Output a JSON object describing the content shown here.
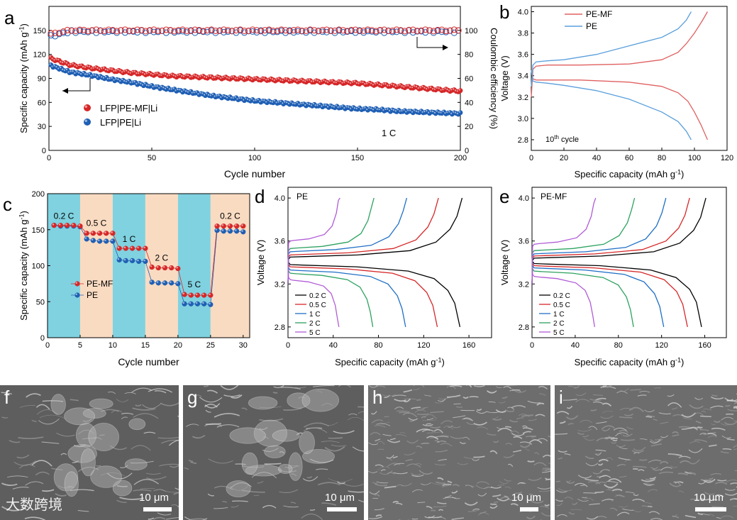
{
  "colors": {
    "red": "#d62728",
    "blue": "#1f5fb4",
    "red_line": "#e06060",
    "blue_line": "#5a9fdc",
    "cyan_band": "#55c3d6",
    "peach_band": "#f7cfae"
  },
  "panel_a": {
    "letter": "a",
    "xlabel": "Cycle number",
    "ylabel_left": "Specific capacity (mAh g",
    "ylabel_left_sup": "-1",
    "ylabel_left_end": ")",
    "ylabel_right": "Coulombic efficiency (%)",
    "rate_label": "1 C",
    "legend": [
      "LFP|PE-MF|Li",
      "LFP|PE|Li"
    ],
    "x_ticks": [
      "0",
      "50",
      "100",
      "150",
      "200"
    ],
    "y_left_ticks": [
      "0",
      "30",
      "60",
      "90",
      "120",
      "150"
    ],
    "y_right_ticks": [
      "0",
      "20",
      "40",
      "60",
      "80",
      "100"
    ]
  },
  "panel_b": {
    "letter": "b",
    "xlabel": "Specific capacity (mAh g",
    "xlabel_sup": "-1",
    "xlabel_end": ")",
    "ylabel": "Voltage (V)",
    "legend": [
      "PE-MF",
      "PE"
    ],
    "cycle_label_pre": "10",
    "cycle_label_sup": "th",
    "cycle_label_post": " cycle",
    "x_ticks": [
      "0",
      "20",
      "40",
      "60",
      "80",
      "100",
      "120"
    ],
    "y_ticks": [
      "2.8",
      "3.0",
      "3.2",
      "3.4",
      "3.6",
      "3.8",
      "4.0"
    ]
  },
  "panel_c": {
    "letter": "c",
    "xlabel": "Cycle number",
    "ylabel": "Specific capacity (mAh g",
    "ylabel_sup": "-1",
    "ylabel_end": ")",
    "legend": [
      "PE-MF",
      "PE"
    ],
    "rate_labels": [
      "0.2 C",
      "0.5 C",
      "1 C",
      "2 C",
      "5 C",
      "0.2 C"
    ],
    "x_ticks": [
      "0",
      "5",
      "10",
      "15",
      "20",
      "25",
      "30"
    ],
    "y_ticks": [
      "0",
      "50",
      "100",
      "150",
      "200"
    ]
  },
  "panel_d": {
    "letter": "d",
    "title": "PE",
    "xlabel": "Specific capacity (mAh g",
    "xlabel_sup": "-1",
    "xlabel_end": ")",
    "ylabel": "Voltage (V)",
    "legend": [
      "0.2 C",
      "0.5 C",
      "1 C",
      "2 C",
      "5 C"
    ],
    "x_ticks": [
      "0",
      "40",
      "80",
      "120",
      "160"
    ],
    "y_ticks": [
      "2.8",
      "3.2",
      "3.6",
      "4.0"
    ]
  },
  "panel_e": {
    "letter": "e",
    "title": "PE-MF",
    "xlabel": "Specific capacity (mAh g",
    "xlabel_sup": "-1",
    "xlabel_end": ")",
    "ylabel": "Voltage (V)",
    "legend": [
      "0.2 C",
      "0.5 C",
      "1 C",
      "2 C",
      "5 C"
    ],
    "x_ticks": [
      "0",
      "40",
      "80",
      "120",
      "160"
    ],
    "y_ticks": [
      "2.8",
      "3.2",
      "3.6",
      "4.0"
    ]
  },
  "sem": [
    {
      "letter": "f",
      "scale": "10 μm"
    },
    {
      "letter": "g",
      "scale": "10 μm"
    },
    {
      "letter": "h",
      "scale": "10 μm"
    },
    {
      "letter": "i",
      "scale": "10 μm"
    }
  ],
  "watermark": "大数跨境",
  "chart_data": [
    {
      "type": "scatter",
      "panel": "a",
      "title": "",
      "xlabel": "Cycle number",
      "ylabel": "Specific capacity (mAh g-1)",
      "y2label": "Coulombic efficiency (%)",
      "xlim": [
        0,
        200
      ],
      "ylim": [
        0,
        180
      ],
      "y2lim": [
        0,
        120
      ],
      "x": [
        1,
        10,
        20,
        30,
        40,
        50,
        60,
        70,
        80,
        90,
        100,
        110,
        120,
        130,
        140,
        150,
        160,
        170,
        180,
        190,
        200
      ],
      "series": [
        {
          "name": "LFP|PE-MF|Li",
          "axis": "left",
          "values": [
            115,
            107,
            103,
            100,
            97,
            95,
            93,
            92,
            91,
            90,
            89,
            88,
            87,
            86,
            85,
            84,
            82,
            80,
            78,
            76,
            74
          ]
        },
        {
          "name": "LFP|PE|Li",
          "axis": "left",
          "values": [
            106,
            98,
            94,
            89,
            85,
            80,
            76,
            72,
            68,
            65,
            62,
            60,
            58,
            56,
            54,
            52,
            51,
            49,
            48,
            47,
            46
          ]
        },
        {
          "name": "CE PE-MF",
          "axis": "right",
          "values": [
            97,
            100,
            100,
            100,
            100,
            100,
            100,
            100,
            100,
            100,
            100,
            100,
            100,
            100,
            100,
            100,
            100,
            100,
            100,
            100,
            100
          ]
        },
        {
          "name": "CE PE",
          "axis": "right",
          "values": [
            95,
            99,
            99,
            99,
            99,
            99,
            99,
            99,
            99,
            99,
            99,
            99,
            99,
            99,
            99,
            99,
            99,
            99,
            99,
            99,
            99
          ]
        }
      ]
    },
    {
      "type": "line",
      "panel": "b",
      "title": "",
      "xlabel": "Specific capacity (mAh g-1)",
      "ylabel": "Voltage (V)",
      "xlim": [
        0,
        120
      ],
      "ylim": [
        2.7,
        4.05
      ],
      "series": [
        {
          "name": "PE-MF charge",
          "x": [
            0,
            1,
            3,
            10,
            30,
            60,
            80,
            90,
            95,
            100,
            105,
            108
          ],
          "y": [
            3.2,
            3.46,
            3.49,
            3.5,
            3.5,
            3.51,
            3.55,
            3.62,
            3.7,
            3.8,
            3.92,
            4.0
          ]
        },
        {
          "name": "PE-MF discharge",
          "x": [
            0,
            1,
            3,
            10,
            30,
            60,
            80,
            90,
            96,
            100,
            104,
            108
          ],
          "y": [
            3.45,
            3.37,
            3.36,
            3.36,
            3.36,
            3.34,
            3.3,
            3.24,
            3.16,
            3.06,
            2.94,
            2.8
          ]
        },
        {
          "name": "PE charge",
          "x": [
            0,
            1,
            3,
            10,
            20,
            40,
            60,
            80,
            90,
            95,
            98
          ],
          "y": [
            3.3,
            3.5,
            3.53,
            3.54,
            3.55,
            3.6,
            3.68,
            3.76,
            3.84,
            3.92,
            4.0
          ]
        },
        {
          "name": "PE discharge",
          "x": [
            0,
            1,
            3,
            10,
            20,
            40,
            60,
            80,
            90,
            95,
            98
          ],
          "y": [
            3.45,
            3.35,
            3.34,
            3.33,
            3.31,
            3.26,
            3.18,
            3.06,
            2.97,
            2.88,
            2.8
          ]
        }
      ]
    },
    {
      "type": "line",
      "panel": "c",
      "title": "",
      "xlabel": "Cycle number",
      "ylabel": "Specific capacity (mAh g-1)",
      "xlim": [
        0,
        31
      ],
      "ylim": [
        0,
        200
      ],
      "x": [
        1,
        2,
        3,
        4,
        5,
        6,
        7,
        8,
        9,
        10,
        11,
        12,
        13,
        14,
        15,
        16,
        17,
        18,
        19,
        20,
        21,
        22,
        23,
        24,
        25,
        26,
        27,
        28,
        29,
        30
      ],
      "series": [
        {
          "name": "PE-MF",
          "values": [
            156,
            156,
            156,
            156,
            155,
            145,
            145,
            145,
            145,
            145,
            124,
            124,
            124,
            124,
            124,
            98,
            97,
            97,
            97,
            96,
            60,
            59,
            59,
            59,
            59,
            155,
            155,
            155,
            155,
            155
          ]
        },
        {
          "name": "PE",
          "values": [
            156,
            155,
            155,
            155,
            154,
            137,
            135,
            134,
            134,
            134,
            108,
            107,
            107,
            106,
            106,
            77,
            76,
            76,
            76,
            75,
            47,
            47,
            47,
            47,
            46,
            149,
            148,
            148,
            148,
            147
          ]
        }
      ],
      "bands": [
        {
          "from": 0,
          "to": 5,
          "label": "0.2 C"
        },
        {
          "from": 5,
          "to": 10,
          "label": "0.5 C"
        },
        {
          "from": 10,
          "to": 15,
          "label": "1 C"
        },
        {
          "from": 15,
          "to": 20,
          "label": "2 C"
        },
        {
          "from": 20,
          "to": 25,
          "label": "5 C"
        },
        {
          "from": 25,
          "to": 31,
          "label": "0.2 C"
        }
      ]
    },
    {
      "type": "line",
      "panel": "d",
      "title": "PE",
      "xlabel": "Specific capacity (mAh g-1)",
      "ylabel": "Voltage (V)",
      "xlim": [
        0,
        180
      ],
      "ylim": [
        2.7,
        4.1
      ],
      "series": [
        {
          "name": "0.2 C",
          "charge_cap": 154,
          "discharge_cap": 152,
          "charge_plateau": 3.45,
          "discharge_plateau": 3.38
        },
        {
          "name": "0.5 C",
          "charge_cap": 133,
          "discharge_cap": 132,
          "charge_plateau": 3.47,
          "discharge_plateau": 3.36
        },
        {
          "name": "1 C",
          "charge_cap": 105,
          "discharge_cap": 104,
          "charge_plateau": 3.5,
          "discharge_plateau": 3.33
        },
        {
          "name": "2 C",
          "charge_cap": 76,
          "discharge_cap": 75,
          "charge_plateau": 3.53,
          "discharge_plateau": 3.3
        },
        {
          "name": "5 C",
          "charge_cap": 46,
          "discharge_cap": 45,
          "charge_plateau": 3.6,
          "discharge_plateau": 3.24
        }
      ]
    },
    {
      "type": "line",
      "panel": "e",
      "title": "PE-MF",
      "xlabel": "Specific capacity (mAh g-1)",
      "ylabel": "Voltage (V)",
      "xlim": [
        0,
        180
      ],
      "ylim": [
        2.7,
        4.1
      ],
      "series": [
        {
          "name": "0.2 C",
          "charge_cap": 161,
          "discharge_cap": 157,
          "charge_plateau": 3.44,
          "discharge_plateau": 3.39
        },
        {
          "name": "0.5 C",
          "charge_cap": 146,
          "discharge_cap": 144,
          "charge_plateau": 3.46,
          "discharge_plateau": 3.37
        },
        {
          "name": "1 C",
          "charge_cap": 124,
          "discharge_cap": 122,
          "charge_plateau": 3.48,
          "discharge_plateau": 3.35
        },
        {
          "name": "2 C",
          "charge_cap": 95,
          "discharge_cap": 94,
          "charge_plateau": 3.51,
          "discharge_plateau": 3.32
        },
        {
          "name": "5 C",
          "charge_cap": 59,
          "discharge_cap": 58,
          "charge_plateau": 3.57,
          "discharge_plateau": 3.27
        }
      ]
    }
  ]
}
